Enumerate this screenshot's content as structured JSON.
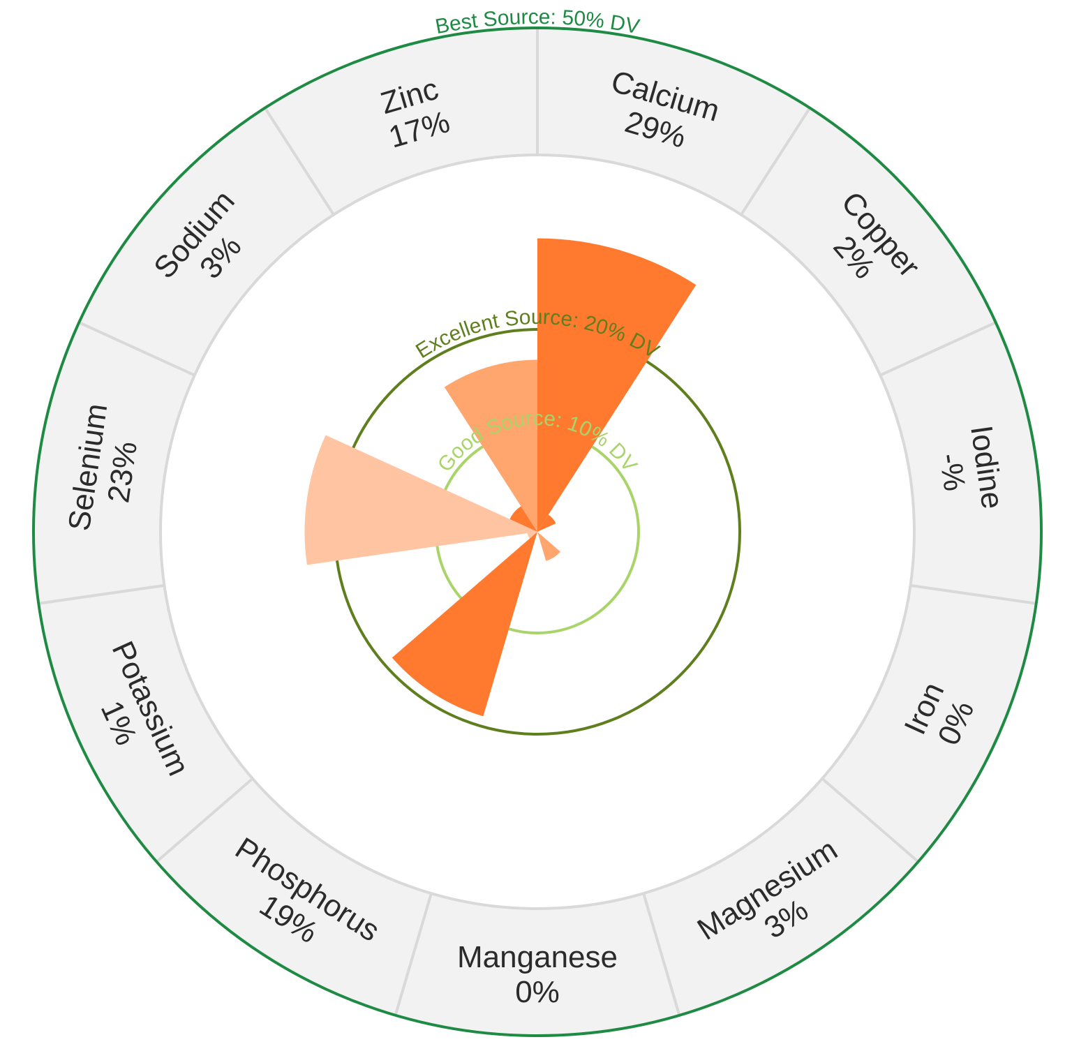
{
  "chart_data": {
    "type": "polar-bar",
    "title": "",
    "unit": "% DV",
    "radial_max": 50,
    "colors": {
      "band_fill": "#f2f2f2",
      "band_line": "#d9d9d9",
      "best_ring": "#1e8a43",
      "excellent_ring": "#5f7f1e",
      "good_ring": "#a9d46a",
      "bar_high": "#ff7a2f",
      "bar_mid": "#ffa66f",
      "bar_low": "#ffc4a2"
    },
    "reference_rings": [
      {
        "id": "best",
        "value": 50,
        "label": "Best Source: 50% DV"
      },
      {
        "id": "excellent",
        "value": 20,
        "label": "Excellent Source: 20% DV"
      },
      {
        "id": "good",
        "value": 10,
        "label": "Good Source: 10% DV"
      }
    ],
    "categories": [
      {
        "name": "Calcium",
        "value_label": "29%",
        "value": 29,
        "shade": "high"
      },
      {
        "name": "Copper",
        "value_label": "2%",
        "value": 2,
        "shade": "high"
      },
      {
        "name": "Iodine",
        "value_label": "-%",
        "value": 0,
        "shade": "high"
      },
      {
        "name": "Iron",
        "value_label": "0%",
        "value": 0,
        "shade": "high"
      },
      {
        "name": "Magnesium",
        "value_label": "3%",
        "value": 3,
        "shade": "mid"
      },
      {
        "name": "Manganese",
        "value_label": "0%",
        "value": 0,
        "shade": "mid"
      },
      {
        "name": "Phosphorus",
        "value_label": "19%",
        "value": 19,
        "shade": "high"
      },
      {
        "name": "Potassium",
        "value_label": "1%",
        "value": 1,
        "shade": "low"
      },
      {
        "name": "Selenium",
        "value_label": "23%",
        "value": 23,
        "shade": "low"
      },
      {
        "name": "Sodium",
        "value_label": "3%",
        "value": 3,
        "shade": "high"
      },
      {
        "name": "Zinc",
        "value_label": "17%",
        "value": 17,
        "shade": "mid"
      }
    ]
  }
}
